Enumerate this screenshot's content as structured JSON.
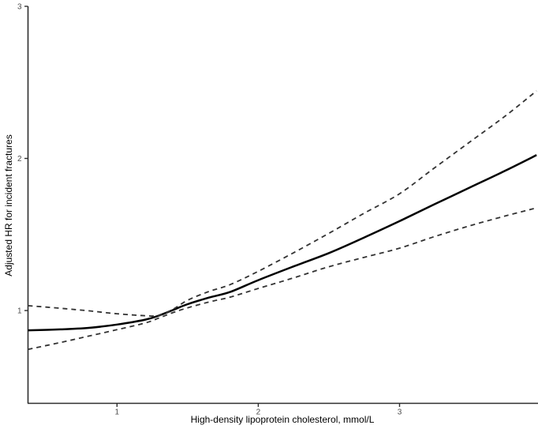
{
  "figure": {
    "background": "#ffffff",
    "axis_color": "#2e2e2e",
    "tick_label_color": "#4d4d4d"
  },
  "chart_data": {
    "type": "line",
    "title": "",
    "xlabel": "High-density lipoprotein cholesterol, mmol/L",
    "ylabel": "Adjusted HR for incident fractures",
    "xlim": [
      0.37,
      3.98
    ],
    "ylim": [
      0.39,
      3.0
    ],
    "x_ticks": [
      "1",
      "2",
      "3"
    ],
    "x_tick_values": [
      1,
      2,
      3
    ],
    "y_ticks": [
      "1",
      "2",
      "3"
    ],
    "y_tick_values": [
      1,
      2,
      3
    ],
    "grid": false,
    "legend_position": "none",
    "x": [
      0.37,
      0.6,
      0.8,
      1.0,
      1.2,
      1.3,
      1.4,
      1.5,
      1.65,
      1.8,
      2.0,
      2.25,
      2.5,
      2.75,
      3.0,
      3.25,
      3.5,
      3.75,
      3.97
    ],
    "series": [
      {
        "name": "adjusted-hr-estimate",
        "style": "solid",
        "color": "#000000",
        "width": 2.5,
        "values": [
          0.87,
          0.876,
          0.886,
          0.908,
          0.94,
          0.968,
          1.005,
          1.042,
          1.085,
          1.122,
          1.2,
          1.29,
          1.378,
          1.48,
          1.588,
          1.7,
          1.81,
          1.92,
          2.022
        ]
      },
      {
        "name": "upper-95ci",
        "style": "dashed",
        "color": "#333333",
        "width": 1.8,
        "values": [
          1.032,
          1.015,
          0.998,
          0.979,
          0.966,
          0.968,
          1.01,
          1.068,
          1.125,
          1.17,
          1.258,
          1.38,
          1.508,
          1.64,
          1.768,
          1.94,
          2.11,
          2.28,
          2.444
        ]
      },
      {
        "name": "lower-95ci",
        "style": "dashed",
        "color": "#333333",
        "width": 1.8,
        "values": [
          0.745,
          0.79,
          0.832,
          0.874,
          0.918,
          0.952,
          0.988,
          1.018,
          1.056,
          1.088,
          1.145,
          1.215,
          1.288,
          1.35,
          1.41,
          1.487,
          1.558,
          1.622,
          1.675
        ]
      }
    ]
  }
}
